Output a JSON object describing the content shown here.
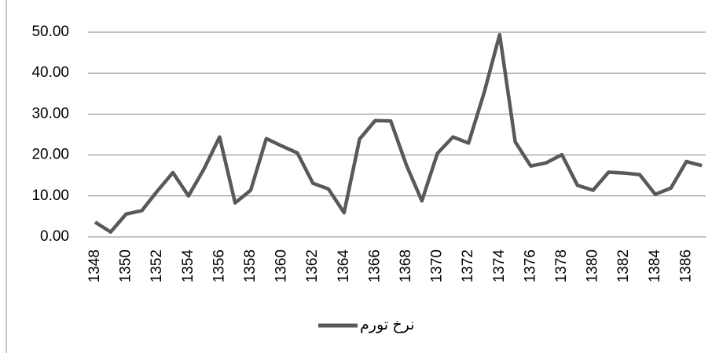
{
  "chart_data": {
    "type": "line",
    "categories": [
      "1348",
      null,
      "1350",
      null,
      "1352",
      null,
      "1354",
      null,
      "1356",
      null,
      "1358",
      null,
      "1360",
      null,
      "1362",
      null,
      "1364",
      null,
      "1366",
      null,
      "1368",
      null,
      "1370",
      null,
      "1372",
      null,
      "1374",
      null,
      "1376",
      null,
      "1378",
      null,
      "1380",
      null,
      "1382",
      null,
      "1384",
      null,
      "1386",
      null
    ],
    "series": [
      {
        "name": "نرخ تورم",
        "color": "#595959",
        "values": [
          3.6,
          1.2,
          5.6,
          6.4,
          11.2,
          15.7,
          10.0,
          16.6,
          24.4,
          8.3,
          11.4,
          24.0,
          22.2,
          20.5,
          13.1,
          11.7,
          5.9,
          23.9,
          28.4,
          28.3,
          17.6,
          8.8,
          20.4,
          24.4,
          22.9,
          35.2,
          49.4,
          23.2,
          17.3,
          18.1,
          20.1,
          12.6,
          11.4,
          15.8,
          15.6,
          15.2,
          10.4,
          11.9,
          18.4,
          17.4
        ]
      }
    ],
    "ylim": [
      0,
      50
    ],
    "yticks": [
      {
        "value": 0,
        "label": "0.00"
      },
      {
        "value": 10,
        "label": "10.00"
      },
      {
        "value": 20,
        "label": "20.00"
      },
      {
        "value": 30,
        "label": "30.00"
      },
      {
        "value": 40,
        "label": "40.00"
      },
      {
        "value": 50,
        "label": "50.00"
      }
    ],
    "grid": true,
    "legend": "bottom"
  }
}
